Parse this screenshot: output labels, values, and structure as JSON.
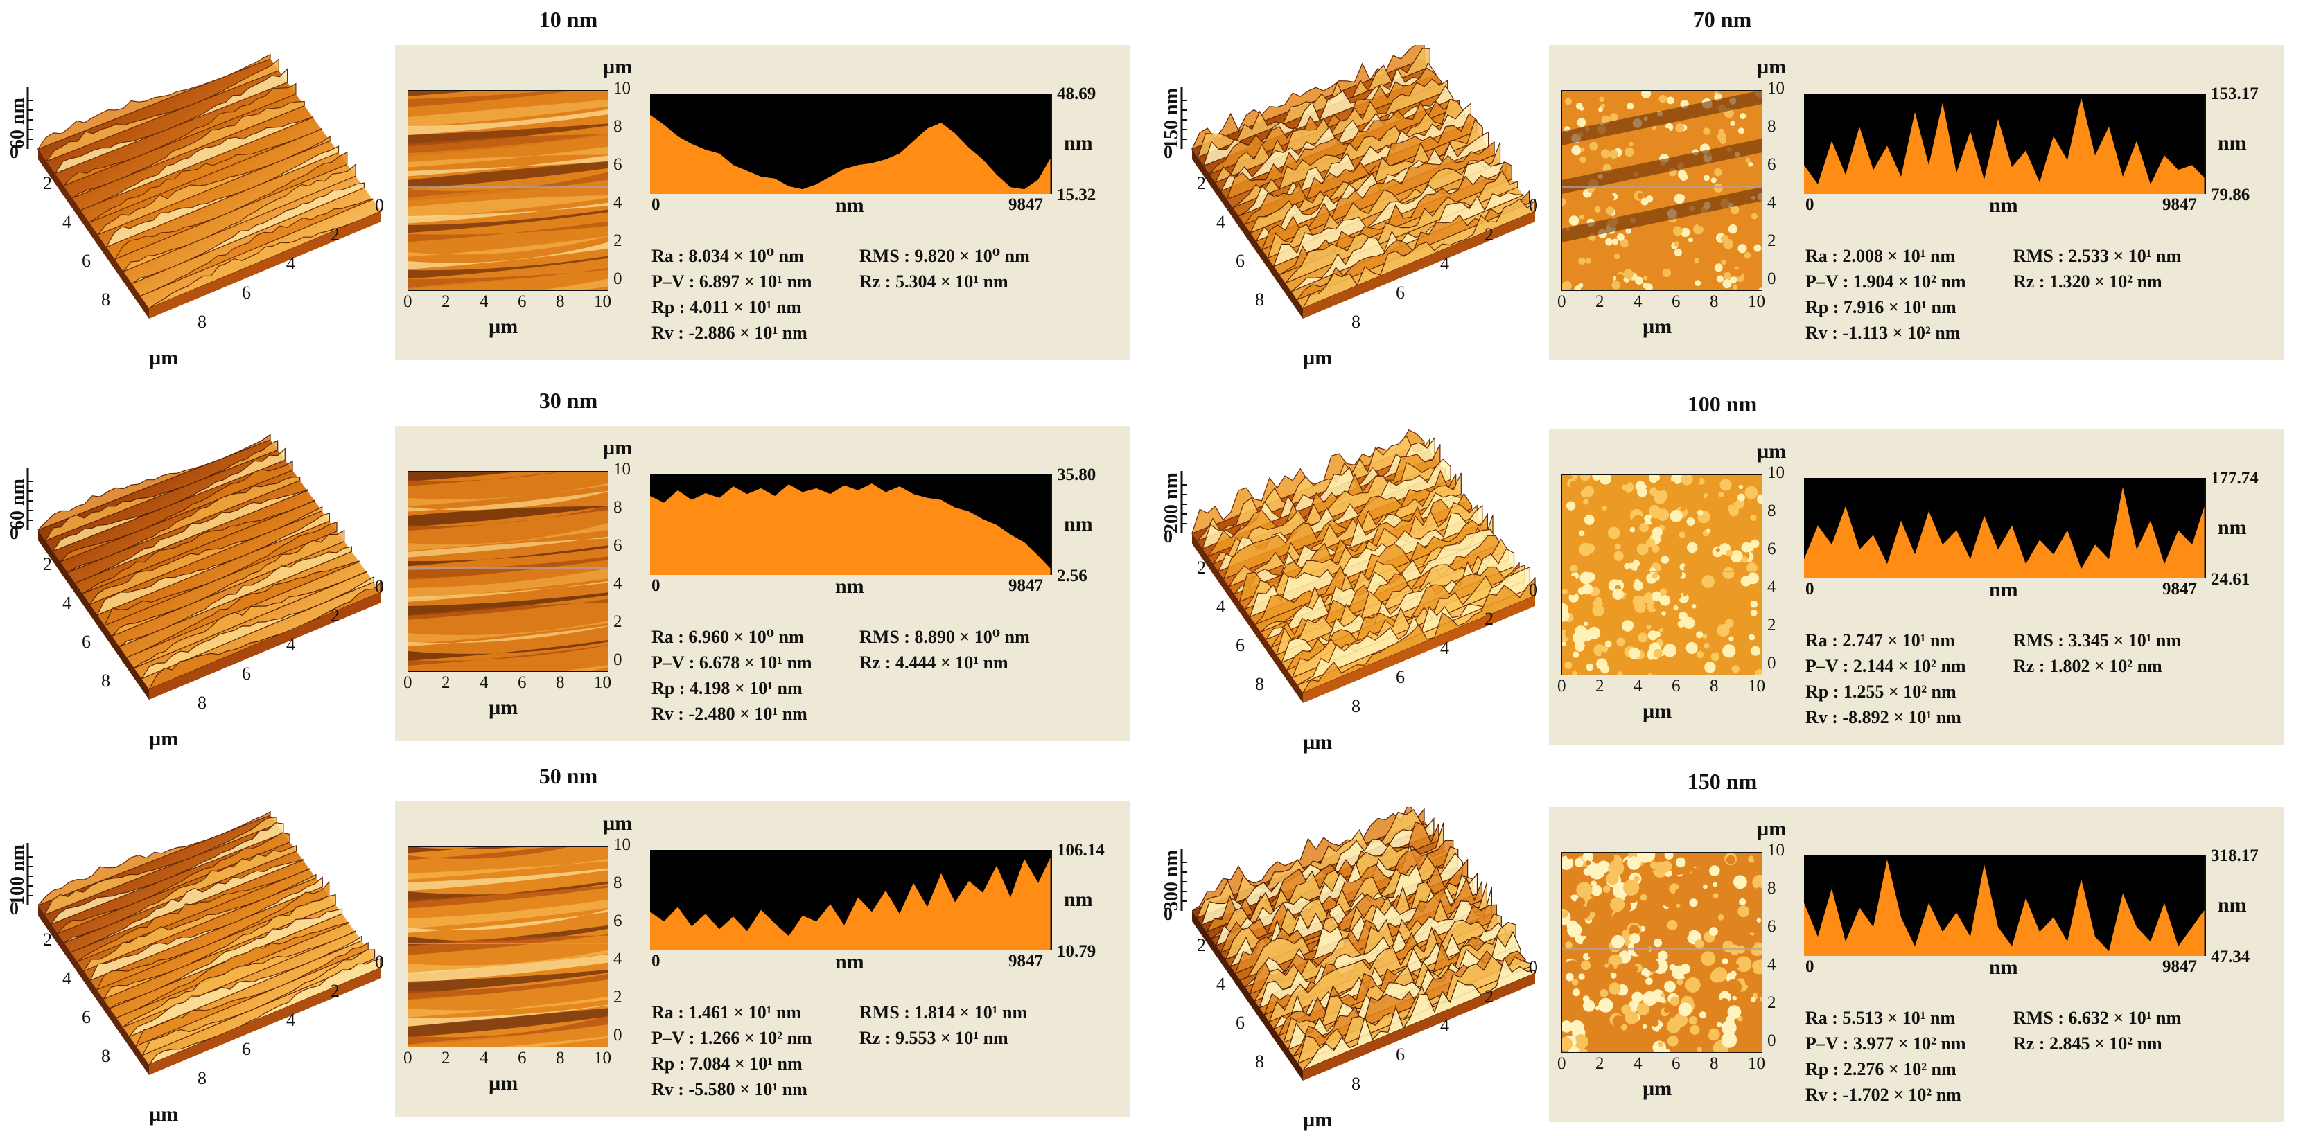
{
  "panels": [
    {
      "title": "10 nm",
      "z_label": "60 nm",
      "profile": {
        "max": "48.69",
        "min": "15.32",
        "x_start": "0",
        "x_end": "9847",
        "x_label": "nm",
        "unit": "nm",
        "values": [
          0.82,
          0.72,
          0.6,
          0.52,
          0.46,
          0.42,
          0.3,
          0.24,
          0.18,
          0.16,
          0.08,
          0.05,
          0.1,
          0.18,
          0.26,
          0.3,
          0.32,
          0.36,
          0.42,
          0.55,
          0.68,
          0.74,
          0.63,
          0.48,
          0.36,
          0.2,
          0.07,
          0.05,
          0.15,
          0.4
        ]
      },
      "stats": {
        "ra": "Ra    : 8.034 × 10⁰  nm",
        "pv": "P–V  : 6.897 × 10¹  nm",
        "rp": "Rp    : 4.011 × 10¹  nm",
        "rv": "Rv    : -2.886 × 10¹ nm",
        "rms": "RMS : 9.820 × 10⁰ nm",
        "rz": "Rz     : 5.304 × 10¹ nm"
      }
    },
    {
      "title": "30 nm",
      "z_label": "60 nm",
      "profile": {
        "max": "35.80",
        "min": "2.56",
        "x_start": "0",
        "x_end": "9847",
        "x_label": "nm",
        "unit": "nm",
        "values": [
          0.82,
          0.75,
          0.88,
          0.78,
          0.85,
          0.8,
          0.92,
          0.84,
          0.9,
          0.82,
          0.94,
          0.86,
          0.9,
          0.84,
          0.93,
          0.88,
          0.95,
          0.86,
          0.92,
          0.84,
          0.8,
          0.78,
          0.7,
          0.66,
          0.58,
          0.52,
          0.42,
          0.34,
          0.2,
          0.05
        ]
      },
      "stats": {
        "ra": "Ra    : 6.960 × 10⁰  nm",
        "pv": "P–V  : 6.678 × 10¹  nm",
        "rp": "Rp    : 4.198 × 10¹  nm",
        "rv": "Rv    : -2.480 × 10¹ nm",
        "rms": "RMS : 8.890 × 10⁰ nm",
        "rz": "Rz     : 4.444 × 10¹ nm"
      }
    },
    {
      "title": "50 nm",
      "z_label": "100 nm",
      "profile": {
        "max": "106.14",
        "min": "10.79",
        "x_start": "0",
        "x_end": "9847",
        "x_label": "nm",
        "unit": "nm",
        "values": [
          0.4,
          0.3,
          0.45,
          0.25,
          0.38,
          0.22,
          0.35,
          0.2,
          0.42,
          0.28,
          0.15,
          0.36,
          0.3,
          0.48,
          0.26,
          0.55,
          0.4,
          0.62,
          0.38,
          0.7,
          0.45,
          0.8,
          0.5,
          0.72,
          0.6,
          0.88,
          0.55,
          0.95,
          0.7,
          1.0
        ]
      },
      "stats": {
        "ra": "Ra    : 1.461 × 10¹  nm",
        "pv": "P–V  : 1.266 × 10²  nm",
        "rp": "Rp    : 7.084 × 10¹  nm",
        "rv": "Rv    : -5.580 × 10¹ nm",
        "rms": "RMS : 1.814 × 10¹ nm",
        "rz": "Rz     : 9.553 × 10¹ nm"
      }
    },
    {
      "title": "70 nm",
      "z_label": "150 nm",
      "profile": {
        "max": "153.17",
        "min": "79.86",
        "x_start": "0",
        "x_end": "9847",
        "x_label": "nm",
        "unit": "nm",
        "values": [
          0.3,
          0.1,
          0.55,
          0.2,
          0.7,
          0.25,
          0.5,
          0.18,
          0.85,
          0.3,
          0.95,
          0.22,
          0.65,
          0.15,
          0.78,
          0.28,
          0.45,
          0.12,
          0.6,
          0.35,
          1.0,
          0.4,
          0.7,
          0.18,
          0.55,
          0.1,
          0.4,
          0.25,
          0.3,
          0.15
        ]
      },
      "stats": {
        "ra": "Ra    : 2.008 × 10¹  nm",
        "pv": "P–V  : 1.904 × 10²  nm",
        "rp": "Rp    : 7.916 × 10¹  nm",
        "rv": "Rv    : -1.113 × 10² nm",
        "rms": "RMS :  2.533 × 10¹ nm",
        "rz": "Rz     : 1.320 × 10² nm"
      }
    },
    {
      "title": "100 nm",
      "z_label": "200 nm",
      "profile": {
        "max": "177.74",
        "min": "24.61",
        "x_start": "0",
        "x_end": "9847",
        "x_label": "nm",
        "unit": "nm",
        "values": [
          0.2,
          0.55,
          0.35,
          0.75,
          0.3,
          0.45,
          0.15,
          0.6,
          0.25,
          0.7,
          0.35,
          0.5,
          0.2,
          0.65,
          0.3,
          0.55,
          0.15,
          0.4,
          0.25,
          0.5,
          0.1,
          0.35,
          0.2,
          0.95,
          0.3,
          0.6,
          0.15,
          0.5,
          0.35,
          0.8
        ]
      },
      "stats": {
        "ra": "Ra    : 2.747 × 10¹  nm",
        "pv": "P–V  : 2.144 × 10²  nm",
        "rp": "Rp    : 1.255 × 10²  nm",
        "rv": "Rv    : -8.892 × 10¹ nm",
        "rms": "RMS : 3.345 × 10¹ nm",
        "rz": "Rz     : 1.802 × 10² nm"
      }
    },
    {
      "title": "150 nm",
      "z_label": "300 nm",
      "profile": {
        "max": "318.17",
        "min": "47.34",
        "x_start": "0",
        "x_end": "9847",
        "x_label": "nm",
        "unit": "nm",
        "values": [
          0.55,
          0.2,
          0.7,
          0.15,
          0.5,
          0.3,
          1.0,
          0.4,
          0.1,
          0.55,
          0.25,
          0.45,
          0.2,
          0.95,
          0.3,
          0.1,
          0.6,
          0.25,
          0.4,
          0.15,
          0.8,
          0.2,
          0.05,
          0.65,
          0.3,
          0.15,
          0.55,
          0.1,
          0.3,
          0.5
        ]
      },
      "stats": {
        "ra": "Ra    : 5.513 × 10¹  nm",
        "pv": "P–V  : 3.977 × 10²  nm",
        "rp": "Rp    : 2.276 × 10²  nm",
        "rv": "Rv    : -1.702 × 10² nm",
        "rms": "RMS : 6.632 × 10¹ nm",
        "rz": "Rz     : 2.845 × 10² nm"
      }
    }
  ],
  "common": {
    "um": "µm",
    "y_ticks": [
      "10",
      "8",
      "6",
      "4",
      "2",
      "0"
    ],
    "x_ticks": [
      "0",
      "2",
      "4",
      "6",
      "8",
      "10"
    ],
    "surf_axis_left": [
      "2",
      "4",
      "6",
      "8"
    ],
    "surf_axis_right": [
      "8",
      "6",
      "4",
      "2",
      "0"
    ],
    "z_zero": "0"
  },
  "colors": {
    "panel_bg": "#eee9d6",
    "profile_fill": "#ff8c14",
    "profile_void": "#000000"
  }
}
